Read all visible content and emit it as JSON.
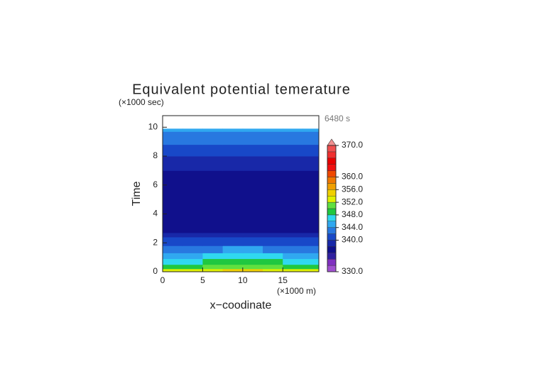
{
  "chart_data": {
    "type": "contour",
    "title": "Equivalent potential temerature",
    "x_label": "x−coodinate",
    "y_label": "Time",
    "x_unit": "(×1000 m)",
    "y_unit": "(×1000 sec)",
    "annotation": "6480 s",
    "xlim": [
      0,
      19.5
    ],
    "ylim": [
      0,
      10.8
    ],
    "xticks": [
      0,
      5,
      10,
      15
    ],
    "yticks": [
      0,
      2,
      4,
      6,
      8,
      10
    ],
    "x_edges": [
      0,
      2.5,
      5,
      7.5,
      10,
      12.5,
      15,
      17.5,
      19.5
    ],
    "y_edges": [
      0,
      0.2,
      0.5,
      0.9,
      1.3,
      1.8,
      2.4,
      2.7,
      7.0,
      8.0,
      8.8,
      9.4,
      9.7,
      9.9
    ],
    "z": [
      [
        353,
        353,
        353.5,
        354,
        354,
        353.5,
        353,
        353
      ],
      [
        349,
        349.5,
        350,
        350.5,
        350.5,
        350,
        349.5,
        349
      ],
      [
        347,
        347.5,
        348.5,
        349,
        349,
        348.5,
        347.5,
        347
      ],
      [
        345,
        345.5,
        346,
        346.5,
        346.5,
        346,
        345.5,
        345
      ],
      [
        343,
        343,
        343.5,
        344,
        344,
        343.5,
        343,
        343
      ],
      [
        341,
        341,
        341,
        341.5,
        341.5,
        341,
        341,
        341
      ],
      [
        339,
        339,
        339,
        339,
        339,
        339,
        339,
        339
      ],
      [
        337,
        337,
        337,
        337,
        337,
        337,
        337,
        337
      ],
      [
        339,
        339,
        339,
        339,
        339,
        339,
        339,
        339
      ],
      [
        341,
        341,
        341,
        341,
        341,
        341,
        341,
        341
      ],
      [
        342.5,
        342.5,
        342.5,
        342.5,
        342.5,
        342.5,
        342.5,
        342.5
      ],
      [
        343.5,
        343.5,
        343.5,
        343.5,
        343.5,
        343.5,
        343.5,
        343.5
      ],
      [
        345,
        345,
        345,
        345,
        345,
        345,
        345,
        345
      ]
    ],
    "levels": [
      330,
      332,
      334,
      336,
      338,
      340,
      342,
      344,
      346,
      348,
      350,
      352,
      354,
      356,
      358,
      360,
      362,
      364,
      366,
      368,
      370
    ],
    "colors": [
      "#a050d0",
      "#8030c0",
      "#3020a0",
      "#10108c",
      "#1828a8",
      "#1848c8",
      "#2878e0",
      "#30a8f0",
      "#30d8f0",
      "#20c840",
      "#60e040",
      "#e0f000",
      "#f0d000",
      "#f0a000",
      "#f07800",
      "#f04800",
      "#f01010",
      "#e80000",
      "#f03030",
      "#f05050"
    ],
    "over_color": "#f09090",
    "colorbar_ticks": [
      {
        "value": 330,
        "label": "330.0"
      },
      {
        "value": 340,
        "label": "340.0"
      },
      {
        "value": 344,
        "label": "344.0"
      },
      {
        "value": 348,
        "label": "348.0"
      },
      {
        "value": 352,
        "label": "352.0"
      },
      {
        "value": 356,
        "label": "356.0"
      },
      {
        "value": 360,
        "label": "360.0"
      },
      {
        "value": 370,
        "label": "370.0"
      }
    ]
  }
}
